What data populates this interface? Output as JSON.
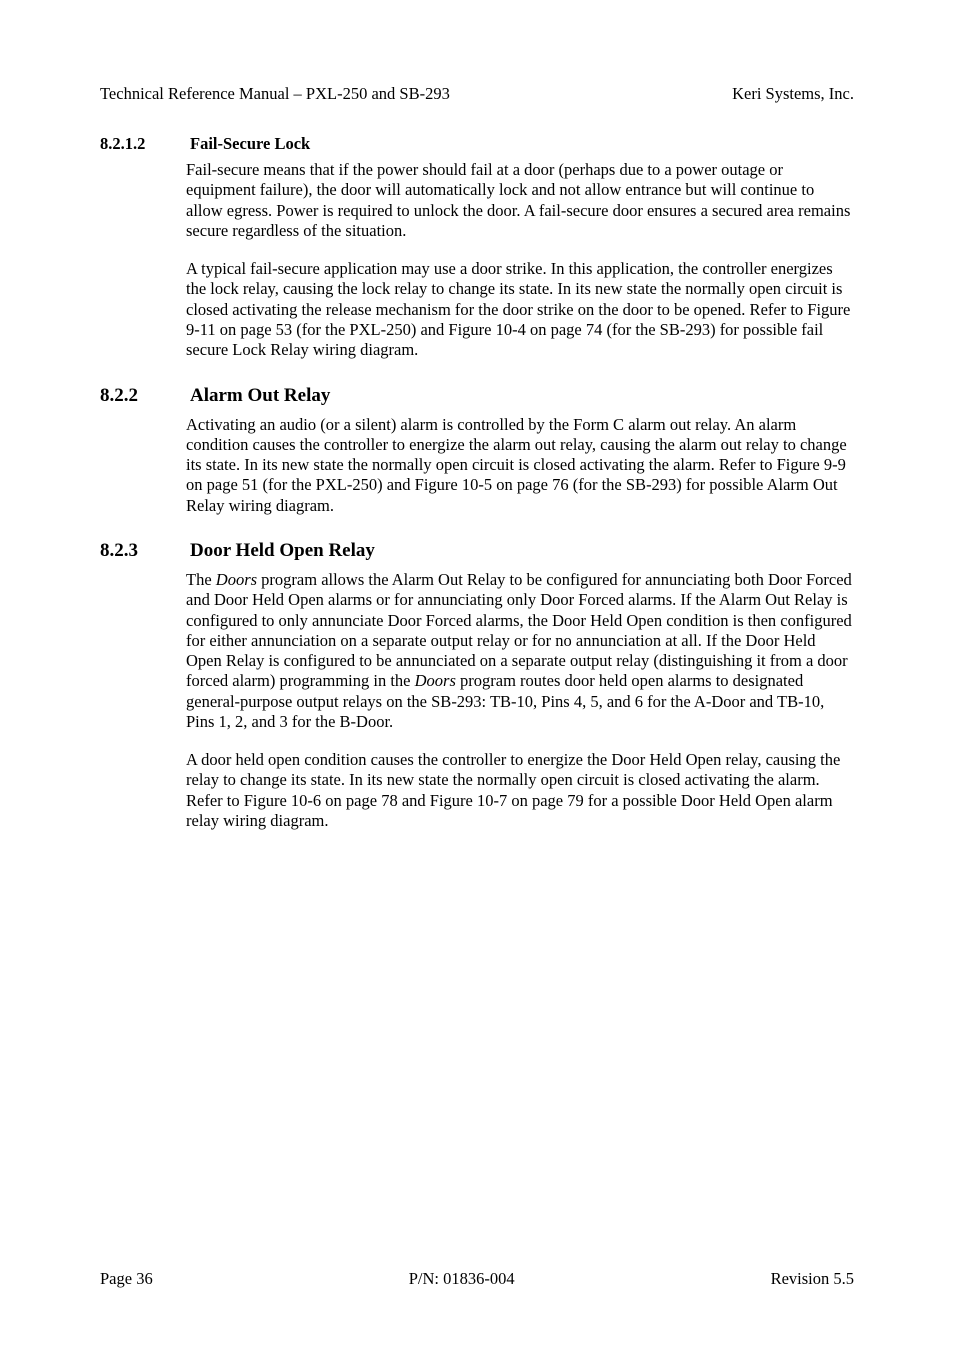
{
  "header": {
    "left": "Technical Reference Manual – PXL-250 and SB-293",
    "right": "Keri Systems, Inc."
  },
  "sections": [
    {
      "level": "h3",
      "num": "8.2.1.2",
      "title": "Fail-Secure Lock",
      "paras": [
        "Fail-secure means that if the power should fail at a door (perhaps due to a power outage or equipment failure), the door will automatically lock and not allow entrance but will continue to allow egress. Power is required to unlock the door. A fail-secure door ensures a secured area remains secure regardless of the situation.",
        "A typical fail-secure application may use a door strike. In this application, the controller energizes the lock relay, causing the lock relay to change its state. In its new state the normally open circuit is closed activating the release mechanism for the door strike on the door to be opened. Refer to Figure 9-11 on page 53 (for the PXL-250) and Figure 10-4 on page 74 (for the SB-293) for possible fail secure Lock Relay wiring diagram."
      ]
    },
    {
      "level": "h2",
      "num": "8.2.2",
      "title": "Alarm Out Relay",
      "paras": [
        "Activating an audio (or a silent) alarm is controlled by the Form C alarm out relay. An alarm condition causes the controller to energize the alarm out relay, causing the alarm out relay to change its state. In its new state the normally open circuit is closed activating the alarm. Refer to Figure 9-9 on page 51 (for the PXL-250) and Figure 10-5 on page 76 (for the SB-293) for possible Alarm Out Relay wiring diagram."
      ]
    },
    {
      "level": "h2",
      "num": "8.2.3",
      "title": "Door Held Open Relay",
      "paras": [
        "The <em>Doors</em> program allows the Alarm Out Relay to be configured for annunciating both Door Forced and Door Held Open alarms or for annunciating only Door Forced alarms. If the Alarm Out Relay is configured to only annunciate Door Forced alarms, the Door Held Open condition is then configured for either annunciation on a separate output relay or for no annunciation at all. If the Door Held Open Relay is configured to be annunciated on a separate output relay (distinguishing it from a door forced alarm) programming in the <em>Doors</em> program routes door held open alarms to designated general-purpose output relays on the SB-293: TB-10, Pins 4, 5, and 6 for the A-Door and TB-10, Pins 1, 2, and 3 for the B-Door.",
        "A door held open condition causes the controller to energize the Door Held Open relay, causing the relay to change its state. In its new state the normally open circuit is closed activating the alarm. Refer to Figure 10-6 on page 78 and Figure 10-7 on page 79 for a possible Door Held Open alarm relay wiring diagram."
      ]
    }
  ],
  "footer": {
    "left": "Page 36",
    "center": "P/N: 01836-004",
    "right": "Revision 5.5"
  }
}
